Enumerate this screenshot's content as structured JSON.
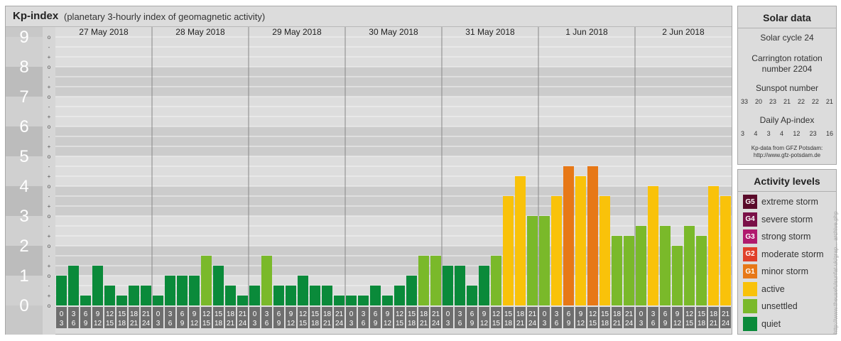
{
  "header": {
    "title": "Kp-index",
    "subtitle": "(planetary 3-hourly index of geomagnetic activity)"
  },
  "chart_data": {
    "type": "bar",
    "title": "Kp-index",
    "subtitle": "(planetary 3-hourly index of geomagnetic activity)",
    "ylim": [
      0,
      9
    ],
    "y_ticks": [
      "0",
      "1",
      "2",
      "3",
      "4",
      "5",
      "6",
      "7",
      "8",
      "9"
    ],
    "y_minor_labels": [
      "o",
      "+",
      "-"
    ],
    "days": [
      "27 May 2018",
      "28 May 2018",
      "29 May 2018",
      "30 May 2018",
      "31 May 2018",
      "1 Jun 2018",
      "2 Jun 2018"
    ],
    "interval_start_labels": [
      "0",
      "3",
      "6",
      "9",
      "12",
      "15",
      "18",
      "21"
    ],
    "interval_end_labels": [
      "3",
      "6",
      "9",
      "12",
      "15",
      "18",
      "21",
      "24"
    ],
    "values": [
      1.0,
      1.333,
      0.333,
      1.333,
      0.667,
      0.333,
      0.667,
      0.667,
      0.333,
      1.0,
      1.0,
      1.0,
      1.667,
      1.333,
      0.667,
      0.333,
      0.667,
      1.667,
      0.667,
      0.667,
      1.0,
      0.667,
      0.667,
      0.333,
      0.333,
      0.333,
      0.667,
      0.333,
      0.667,
      1.0,
      1.667,
      1.667,
      1.333,
      1.333,
      0.667,
      1.333,
      1.667,
      3.667,
      4.333,
      3.0,
      3.0,
      3.667,
      4.667,
      4.333,
      4.667,
      3.667,
      2.333,
      2.333,
      2.667,
      4.0,
      2.667,
      2.0,
      2.667,
      2.333,
      4.0,
      3.667
    ],
    "colors": [
      "quiet",
      "quiet",
      "quiet",
      "quiet",
      "quiet",
      "quiet",
      "quiet",
      "quiet",
      "quiet",
      "quiet",
      "quiet",
      "quiet",
      "unsettled",
      "quiet",
      "quiet",
      "quiet",
      "quiet",
      "unsettled",
      "quiet",
      "quiet",
      "quiet",
      "quiet",
      "quiet",
      "quiet",
      "quiet",
      "quiet",
      "quiet",
      "quiet",
      "quiet",
      "quiet",
      "unsettled",
      "unsettled",
      "quiet",
      "quiet",
      "quiet",
      "quiet",
      "unsettled",
      "active",
      "active",
      "unsettled",
      "unsettled",
      "active",
      "minor",
      "active",
      "minor",
      "active",
      "unsettled",
      "unsettled",
      "unsettled",
      "active",
      "unsettled",
      "unsettled",
      "unsettled",
      "unsettled",
      "active",
      "active"
    ],
    "palette": {
      "quiet": "#0a8a3a",
      "unsettled": "#7ab92a",
      "active": "#f9c20a",
      "minor": "#e77817"
    },
    "grid": true
  },
  "solar": {
    "title": "Solar data",
    "cycle": "Solar cycle 24",
    "carrington_line1": "Carrington rotation",
    "carrington_line2": "number 2204",
    "sunspot_label": "Sunspot number",
    "sunspot_values": [
      "33",
      "20",
      "23",
      "21",
      "22",
      "22",
      "21"
    ],
    "ap_label": "Daily Ap-index",
    "ap_values": [
      "3",
      "4",
      "3",
      "4",
      "12",
      "23",
      "16"
    ],
    "source_line1": "Kp-data from GFZ Potsdam:",
    "source_line2": "http://www.gfz-potsdam.de"
  },
  "activity": {
    "title": "Activity levels",
    "levels": [
      {
        "code": "G5",
        "label": "extreme storm",
        "color": "#5a0a2a"
      },
      {
        "code": "G4",
        "label": "severe storm",
        "color": "#7a1048"
      },
      {
        "code": "G3",
        "label": "strong storm",
        "color": "#b01a6e"
      },
      {
        "code": "G2",
        "label": "moderate storm",
        "color": "#e0402a"
      },
      {
        "code": "G1",
        "label": "minor storm",
        "color": "#e77817"
      },
      {
        "code": "",
        "label": "active",
        "color": "#f9c20a"
      },
      {
        "code": "",
        "label": "unsettled",
        "color": "#7ab92a"
      },
      {
        "code": "",
        "label": "quiet",
        "color": "#0a8a3a"
      }
    ]
  },
  "watermark": "http://www.theusefulsunfat.uk/grap... archive.php"
}
